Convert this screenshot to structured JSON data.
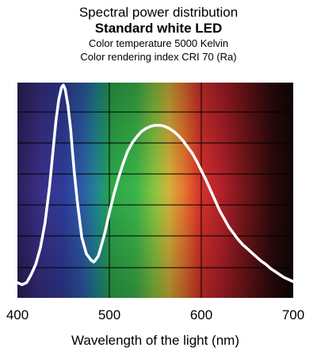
{
  "chart_data": {
    "type": "line",
    "title": "Spectral power distribution",
    "subtitle": "Standard white LED",
    "annotations": [
      "Color temperature 5000 Kelvin",
      "Color rendering index CRI 70 (Ra)"
    ],
    "xlabel": "Wavelength of the light (nm)",
    "ylabel": "",
    "xlim": [
      400,
      700
    ],
    "ylim": [
      0,
      1
    ],
    "xticks": [
      400,
      500,
      600,
      700
    ],
    "grid": true,
    "background": "visible light spectrum gradient (violet to dark red)",
    "colors": {
      "curve": "#ffffff",
      "gridlines": "#000000"
    },
    "series": [
      {
        "x": [
          400,
          405,
          410,
          415,
          420,
          425,
          430,
          435,
          440,
          442,
          445,
          448,
          450,
          452,
          455,
          458,
          460,
          462,
          465,
          468,
          470,
          475,
          480,
          483,
          485,
          488,
          490,
          495,
          500,
          505,
          510,
          515,
          520,
          525,
          530,
          535,
          540,
          545,
          550,
          555,
          560,
          565,
          570,
          575,
          580,
          585,
          590,
          595,
          600,
          605,
          610,
          615,
          620,
          625,
          630,
          635,
          640,
          645,
          650,
          655,
          660,
          665,
          670,
          675,
          680,
          685,
          690,
          695,
          700
        ],
        "y": [
          0.02,
          0.01,
          0.02,
          0.06,
          0.11,
          0.19,
          0.31,
          0.49,
          0.72,
          0.81,
          0.91,
          0.97,
          0.98,
          0.96,
          0.88,
          0.76,
          0.65,
          0.55,
          0.42,
          0.31,
          0.24,
          0.16,
          0.13,
          0.12,
          0.13,
          0.15,
          0.18,
          0.26,
          0.36,
          0.45,
          0.53,
          0.6,
          0.66,
          0.7,
          0.73,
          0.755,
          0.77,
          0.78,
          0.785,
          0.785,
          0.78,
          0.77,
          0.755,
          0.735,
          0.71,
          0.68,
          0.65,
          0.61,
          0.565,
          0.52,
          0.47,
          0.42,
          0.37,
          0.33,
          0.29,
          0.26,
          0.23,
          0.205,
          0.185,
          0.165,
          0.145,
          0.125,
          0.11,
          0.09,
          0.075,
          0.06,
          0.045,
          0.035,
          0.025
        ]
      }
    ]
  }
}
